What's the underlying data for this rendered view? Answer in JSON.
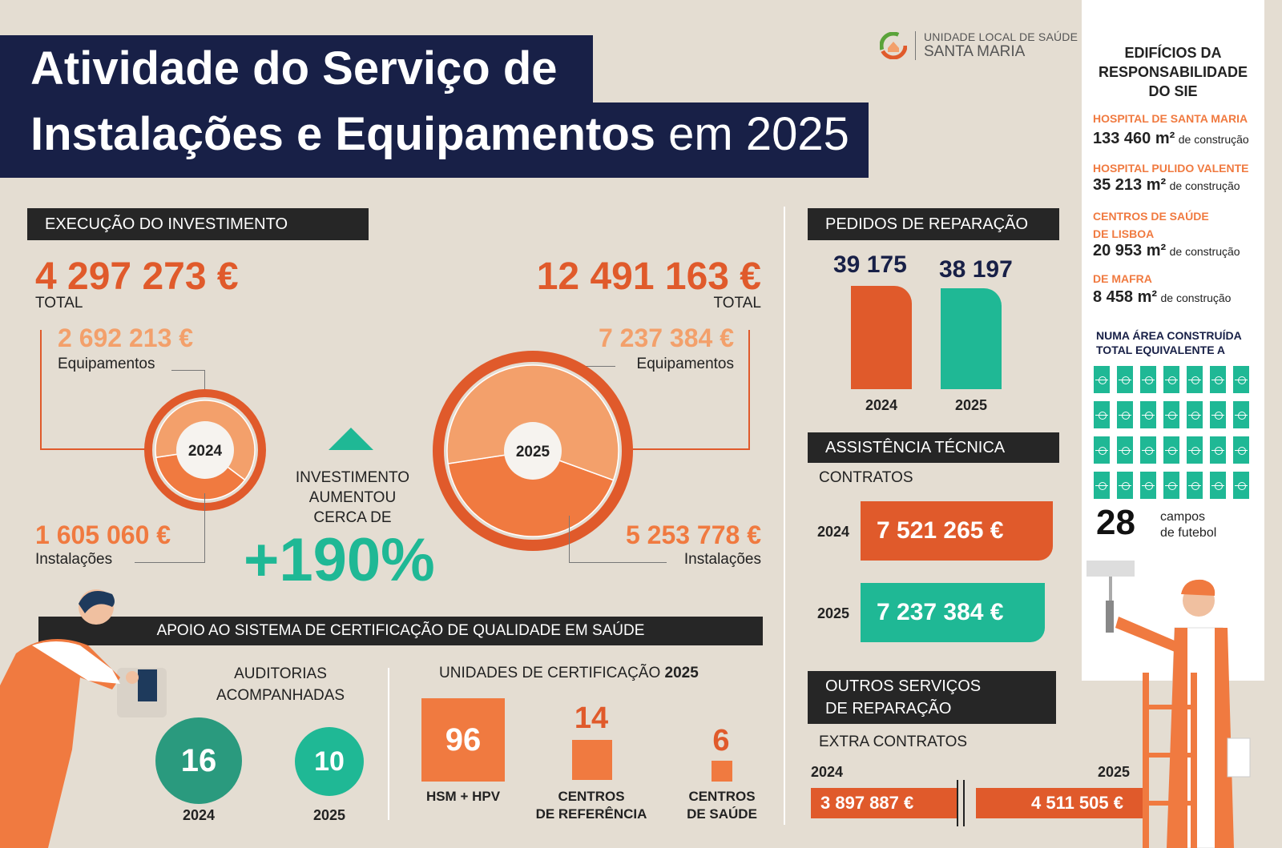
{
  "title": {
    "line1": "Atividade do Serviço de",
    "line2_bold": "Instalações e Equipamentos",
    "line2_light": "em 2025"
  },
  "logo": {
    "line1": "UNIDADE LOCAL DE SAÚDE",
    "line2": "SANTA MARIA"
  },
  "investment": {
    "header": "EXECUÇÃO DO INVESTIMENTO",
    "y2024": {
      "year": "2024",
      "total": "4 297 273 €",
      "total_label": "TOTAL",
      "equipment": "2 692 213 €",
      "equipment_label": "Equipamentos",
      "installations": "1 605 060 €",
      "installations_label": "Instalações",
      "equipment_value": 2692213,
      "installations_value": 1605060
    },
    "y2025": {
      "year": "2025",
      "total": "12 491 163 €",
      "total_label": "TOTAL",
      "equipment": "7 237 384 €",
      "equipment_label": "Equipamentos",
      "installations": "5 253 778 €",
      "installations_label": "Instalações",
      "equipment_value": 7237384,
      "installations_value": 5253778
    },
    "increase_text_1": "INVESTIMENTO",
    "increase_text_2": "AUMENTOU",
    "increase_text_3": "CERCA DE",
    "increase_value": "+190%"
  },
  "repairs": {
    "header": "PEDIDOS DE REPARAÇÃO",
    "bars": [
      {
        "year": "2024",
        "value_label": "39 175",
        "value": 39175,
        "color": "#e05a2b"
      },
      {
        "year": "2025",
        "value_label": "38 197",
        "value": 38197,
        "color": "#1fb895"
      }
    ]
  },
  "technical": {
    "header": "ASSISTÊNCIA TÉCNICA",
    "sub": "CONTRATOS",
    "rows": [
      {
        "year": "2024",
        "value": "7 521 265 €",
        "color": "#e05a2b"
      },
      {
        "year": "2025",
        "value": "7 237 384 €",
        "color": "#1fb895"
      }
    ]
  },
  "other": {
    "header_1": "OUTROS SERVIÇOS",
    "header_2": "DE REPARAÇÃO",
    "sub": "EXTRA CONTRATOS",
    "y2024": "2024",
    "v2024": "3 897 887 €",
    "y2025": "2025",
    "v2025": "4 511 505 €"
  },
  "buildings": {
    "title_1": "EDIFÍCIOS DA",
    "title_2": "RESPONSABILIDADE",
    "title_3": "DO SIE",
    "items": [
      {
        "name": "HOSPITAL DE SANTA MARIA",
        "value": "133 460 m²",
        "suffix": "de construção"
      },
      {
        "name": "HOSPITAL PULIDO VALENTE",
        "value": "35 213 m²",
        "suffix": "de construção"
      },
      {
        "name": "CENTROS DE SAÚDE",
        "name2": "DE LISBOA",
        "value": "20 953 m²",
        "suffix": "de construção"
      },
      {
        "name": "DE MAFRA",
        "value": "8 458 m²",
        "suffix": "de construção"
      }
    ],
    "area_text_1": "NUMA ÁREA CONSTRUÍDA",
    "area_text_2": "TOTAL EQUIVALENTE A",
    "fields_count": "28",
    "fields_label_1": "campos",
    "fields_label_2": "de futebol"
  },
  "certification": {
    "header": "APOIO AO SISTEMA DE CERTIFICAÇÃO DE QUALIDADE EM SAÚDE",
    "audits_title_1": "AUDITORIAS",
    "audits_title_2": "ACOMPANHADAS",
    "audits": [
      {
        "year": "2024",
        "value": "16",
        "color": "#2a9a7e"
      },
      {
        "year": "2025",
        "value": "10",
        "color": "#1fb895"
      }
    ],
    "units_title": "UNIDADES DE CERTIFICAÇÃO",
    "units_year": "2025",
    "units": [
      {
        "value": "96",
        "label_1": "HSM + HPV",
        "label_2": ""
      },
      {
        "value": "14",
        "label_1": "CENTROS",
        "label_2": "DE REFERÊNCIA"
      },
      {
        "value": "6",
        "label_1": "CENTROS",
        "label_2": "DE SAÚDE"
      }
    ]
  },
  "colors": {
    "navy": "#182047",
    "red": "#e05a2b",
    "orange": "#f07a40",
    "light_orange": "#f3a06b",
    "teal": "#1fb895",
    "dark_teal": "#2a9a7e",
    "bg": "#e4ddd2"
  }
}
